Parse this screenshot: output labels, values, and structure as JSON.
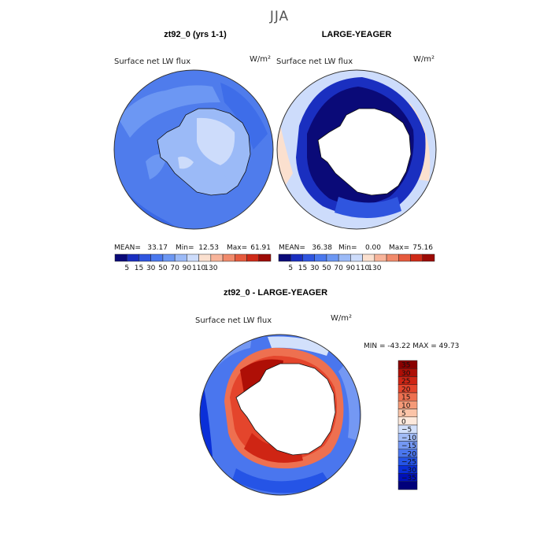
{
  "title": "JJA",
  "colors": {
    "abs": [
      "#0a0a78",
      "#1a2fc0",
      "#2f55df",
      "#4a78ee",
      "#6c97f3",
      "#9bbaf7",
      "#cddcfb",
      "#fbe0cf",
      "#f8b49a",
      "#f18a6b",
      "#e65a3d",
      "#cf2a17",
      "#9c0a05"
    ],
    "diff": [
      "#00007a",
      "#0010b8",
      "#0a2fd8",
      "#2554e6",
      "#4a76ee",
      "#7498f3",
      "#a2bcf7",
      "#d2e0fb",
      "#fde9dc",
      "#fbc4a8",
      "#f59a78",
      "#ee7050",
      "#e4452c",
      "#cf2514",
      "#ae0f06",
      "#8a0000"
    ],
    "land": "#ffffff"
  },
  "chart_data": [
    {
      "type": "heatmap",
      "panel": "top-left",
      "title": "zt92_0 (yrs 1-1)",
      "variable": "Surface net LW flux",
      "units": "W/m²",
      "stats": {
        "mean_label": "MEAN=",
        "mean": "33.17",
        "min_label": "Min=",
        "min": "12.53",
        "max_label": "Max=",
        "max": "61.91"
      },
      "colorbar_ticks": [
        "5",
        "15",
        "30",
        "50",
        "70",
        "90",
        "110",
        "130"
      ]
    },
    {
      "type": "heatmap",
      "panel": "top-right",
      "title": "LARGE-YEAGER",
      "variable": "Surface net LW flux",
      "units": "W/m²",
      "stats": {
        "mean_label": "MEAN=",
        "mean": "36.38",
        "min_label": "Min=",
        "min": "0.00",
        "max_label": "Max=",
        "max": "75.16"
      },
      "colorbar_ticks": [
        "5",
        "15",
        "30",
        "50",
        "70",
        "90",
        "110",
        "130"
      ]
    },
    {
      "type": "heatmap",
      "panel": "bottom",
      "title": "zt92_0 - LARGE-YEAGER",
      "variable": "Surface net LW flux",
      "units": "W/m²",
      "minmax": "MIN = -43.22 MAX =  49.73",
      "colorbar_ticks": [
        "35",
        "30",
        "25",
        "20",
        "15",
        "10",
        "5",
        "0",
        "−5",
        "−10",
        "−15",
        "−20",
        "−25",
        "−30",
        "−35"
      ]
    }
  ]
}
